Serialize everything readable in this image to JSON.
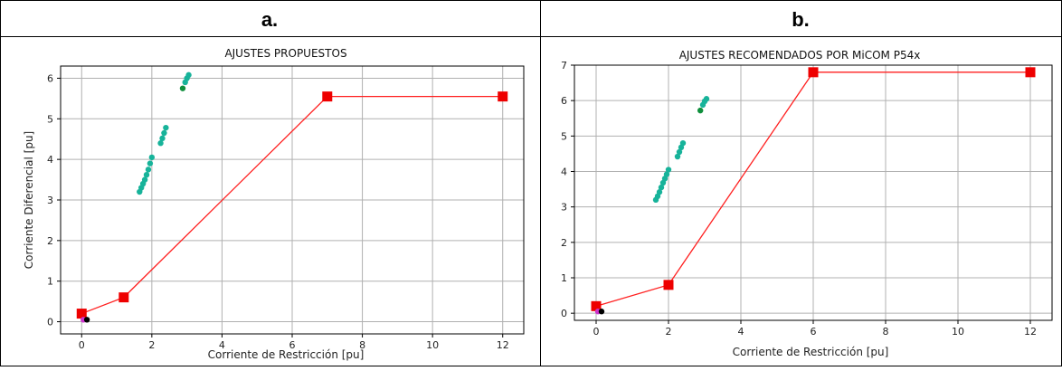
{
  "figure": {
    "panels": [
      {
        "label": "a.",
        "title": "AJUSTES PROPUESTOS"
      },
      {
        "label": "b.",
        "title": "AJUSTES RECOMENDADOS POR MiCOM P54x"
      }
    ]
  },
  "chart_data": [
    {
      "type": "line",
      "title": "AJUSTES PROPUESTOS",
      "xlabel": "Corriente de Restricción [pu]",
      "ylabel": "Corriente Diferencial [pu]",
      "xlim": [
        -0.6,
        12.6
      ],
      "ylim": [
        -0.3,
        6.3
      ],
      "xticks": [
        0,
        2,
        4,
        6,
        8,
        10,
        12
      ],
      "yticks": [
        0,
        1,
        2,
        3,
        4,
        5,
        6
      ],
      "grid": true,
      "colors": {
        "characteristic": "#ff2020",
        "marker": "#ee0000",
        "points": "#17b39a",
        "points_dark": "#0f8f3c",
        "origin_magenta": "#cc33cc",
        "origin_black": "#000000"
      },
      "series": [
        {
          "type": "line",
          "markers": "square",
          "x": [
            0,
            1.2,
            7,
            12
          ],
          "y": [
            0.2,
            0.6,
            5.55,
            5.55
          ]
        },
        {
          "type": "scatter",
          "x": [
            1.65,
            1.7,
            1.75,
            1.8,
            1.85,
            1.9,
            1.95,
            2.0,
            2.25,
            2.3,
            2.35,
            2.4,
            2.88,
            2.95,
            3.0,
            3.05
          ],
          "y": [
            3.2,
            3.3,
            3.4,
            3.5,
            3.62,
            3.75,
            3.9,
            4.05,
            4.4,
            4.52,
            4.65,
            4.78,
            5.75,
            5.9,
            6.0,
            6.08
          ]
        },
        {
          "type": "scatter",
          "x": [
            0.05,
            0.15
          ],
          "y": [
            0.05,
            0.05
          ]
        }
      ]
    },
    {
      "type": "line",
      "title": "AJUSTES RECOMENDADOS POR MiCOM P54x",
      "xlabel": "Corriente de Restricción [pu]",
      "ylabel": "",
      "xlim": [
        -0.6,
        12.6
      ],
      "ylim": [
        -0.2,
        7.0
      ],
      "xticks": [
        0,
        2,
        4,
        6,
        8,
        10,
        12
      ],
      "yticks": [
        0,
        1,
        2,
        3,
        4,
        5,
        6,
        7
      ],
      "grid": true,
      "colors": {
        "characteristic": "#ff2020",
        "marker": "#ee0000",
        "points": "#17b39a",
        "points_dark": "#0f8f3c",
        "origin_magenta": "#cc33cc",
        "origin_black": "#000000"
      },
      "series": [
        {
          "type": "line",
          "markers": "square",
          "x": [
            0,
            2,
            6,
            12
          ],
          "y": [
            0.2,
            0.8,
            6.8,
            6.8
          ]
        },
        {
          "type": "scatter",
          "x": [
            1.65,
            1.7,
            1.75,
            1.8,
            1.85,
            1.9,
            1.95,
            2.0,
            2.25,
            2.3,
            2.35,
            2.4,
            2.88,
            2.95,
            3.0,
            3.05
          ],
          "y": [
            3.2,
            3.3,
            3.42,
            3.55,
            3.68,
            3.8,
            3.92,
            4.05,
            4.42,
            4.55,
            4.68,
            4.8,
            5.72,
            5.88,
            5.98,
            6.05
          ]
        },
        {
          "type": "scatter",
          "x": [
            0.05,
            0.15
          ],
          "y": [
            0.05,
            0.05
          ]
        }
      ]
    }
  ]
}
